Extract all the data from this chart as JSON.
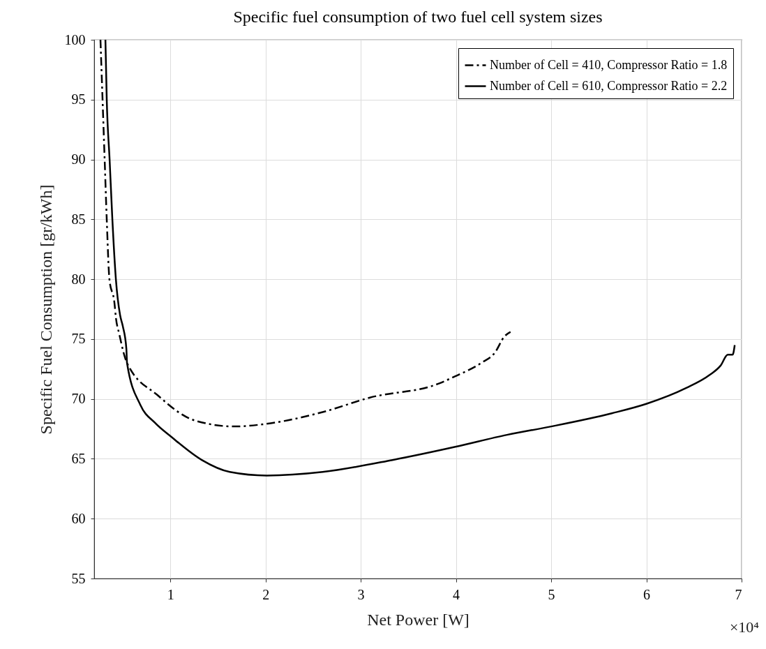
{
  "chart_data": {
    "type": "line",
    "title": "Specific fuel consumption of two fuel cell system sizes",
    "xlabel": "Net Power [W]",
    "ylabel": "Specific Fuel Consumption [gr/kWh]",
    "annotations": [
      "×10⁴"
    ],
    "xlim": [
      0.2,
      7
    ],
    "xticks": [
      1,
      2,
      3,
      4,
      5,
      6,
      7
    ],
    "ylim": [
      55,
      100
    ],
    "yticks": [
      55,
      60,
      65,
      70,
      75,
      80,
      85,
      90,
      95,
      100
    ],
    "grid": true,
    "legend": "top right",
    "series": [
      {
        "name": "Number of Cell = 410, Compressor Ratio = 1.8",
        "color": "#000000",
        "line_style": "dashdot",
        "x": [
          0.266,
          0.288,
          0.31,
          0.332,
          0.36,
          0.413,
          0.428,
          0.464,
          0.545,
          0.868,
          1.257,
          1.675,
          1.99,
          2.6,
          3.09,
          3.825,
          3.993,
          4.265,
          4.412,
          4.507,
          4.573
        ],
        "values": [
          100,
          95,
          90,
          85,
          80,
          78,
          76.8,
          75.4,
          73.0,
          70.3,
          68.2,
          67.7,
          67.9,
          68.9,
          70.1,
          71.3,
          71.9,
          73.0,
          73.9,
          75.2,
          75.6
        ]
      },
      {
        "name": "Number of Cell = 610, Compressor Ratio = 2.2",
        "color": "#000000",
        "line_style": "solid",
        "x": [
          0.318,
          0.332,
          0.362,
          0.391,
          0.428,
          0.472,
          0.5,
          0.538,
          0.545,
          0.685,
          0.839,
          1.015,
          1.33,
          1.624,
          2.013,
          2.6,
          3.333,
          3.993,
          4.536,
          5.0,
          5.637,
          6.004,
          6.415,
          6.664,
          6.781,
          6.855,
          6.906,
          6.928
        ],
        "values": [
          100,
          95,
          90,
          85,
          80,
          77,
          76.1,
          74.2,
          73.0,
          69.5,
          68.0,
          66.8,
          64.9,
          63.9,
          63.6,
          63.9,
          64.9,
          66.0,
          67.0,
          67.7,
          68.8,
          69.6,
          70.9,
          72.0,
          72.8,
          73.7,
          73.7,
          74.5
        ]
      }
    ]
  }
}
